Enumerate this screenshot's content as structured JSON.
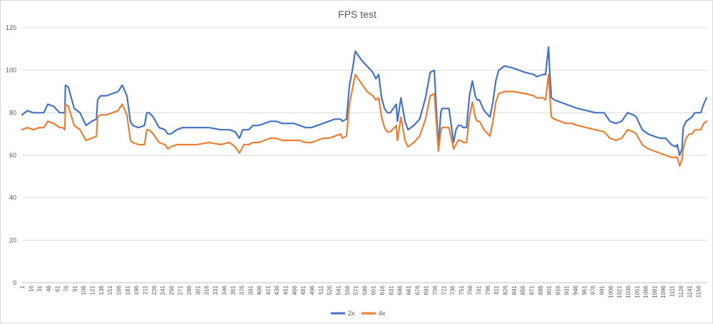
{
  "chart_data": {
    "type": "line",
    "title": "FPS test",
    "xlabel": "",
    "ylabel": "",
    "ylim": [
      0,
      120
    ],
    "yticks": [
      0,
      20,
      40,
      60,
      80,
      100,
      120
    ],
    "x_range": [
      1,
      1170
    ],
    "x_tick_start": 1,
    "x_tick_step": 15,
    "x_tick_labels": [
      "1",
      "16",
      "31",
      "46",
      "61",
      "76",
      "91",
      "106",
      "121",
      "136",
      "151",
      "166",
      "181",
      "196",
      "211",
      "226",
      "241",
      "256",
      "271",
      "286",
      "301",
      "316",
      "331",
      "346",
      "361",
      "376",
      "391",
      "406",
      "421",
      "436",
      "451",
      "466",
      "481",
      "496",
      "511",
      "526",
      "541",
      "556",
      "571",
      "586",
      "601",
      "616",
      "631",
      "646",
      "661",
      "676",
      "691",
      "706",
      "721",
      "736",
      "751",
      "766",
      "781",
      "796",
      "811",
      "826",
      "841",
      "856",
      "871",
      "886",
      "901",
      "916",
      "931",
      "946",
      "961",
      "976",
      "991",
      "1006",
      "1021",
      "1036",
      "1051",
      "1066",
      "1081",
      "1096",
      "1111",
      "1126",
      "1141",
      "1156"
    ],
    "grid": true,
    "legend_position": "bottom",
    "series": [
      {
        "name": "2x",
        "color": "#4472c4",
        "x": [
          1,
          10,
          20,
          30,
          38,
          45,
          55,
          65,
          70,
          74,
          75,
          80,
          90,
          100,
          110,
          120,
          128,
          130,
          135,
          145,
          155,
          165,
          172,
          180,
          186,
          190,
          200,
          210,
          214,
          218,
          225,
          235,
          245,
          250,
          255,
          265,
          275,
          285,
          300,
          320,
          340,
          355,
          365,
          372,
          378,
          380,
          388,
          395,
          405,
          415,
          425,
          435,
          445,
          455,
          465,
          475,
          485,
          495,
          505,
          515,
          525,
          535,
          545,
          548,
          555,
          560,
          565,
          570,
          580,
          590,
          600,
          605,
          610,
          615,
          620,
          625,
          630,
          640,
          642,
          648,
          655,
          660,
          670,
          680,
          690,
          698,
          705,
          712,
          716,
          718,
          722,
          730,
          738,
          742,
          746,
          750,
          755,
          760,
          765,
          770,
          775,
          778,
          782,
          790,
          800,
          805,
          810,
          815,
          825,
          840,
          860,
          875,
          880,
          890,
          895,
          900,
          902,
          905,
          910,
          920,
          930,
          940,
          950,
          965,
          980,
          995,
          1005,
          1015,
          1025,
          1030,
          1035,
          1045,
          1050,
          1060,
          1070,
          1080,
          1090,
          1100,
          1110,
          1118,
          1120,
          1124,
          1128,
          1130,
          1135,
          1140,
          1145,
          1150,
          1160,
          1165,
          1170
        ],
        "y": [
          79,
          81,
          80,
          80,
          80,
          84,
          83,
          80,
          80,
          80,
          93,
          92,
          82,
          80,
          74,
          76,
          77,
          86,
          88,
          88,
          89,
          90,
          93,
          88,
          76,
          74,
          73,
          74,
          80,
          80,
          78,
          73,
          72,
          70,
          70,
          72,
          73,
          73,
          73,
          73,
          72,
          72,
          71,
          68,
          72,
          72,
          72,
          74,
          74,
          75,
          76,
          76,
          75,
          75,
          75,
          74,
          73,
          73,
          74,
          75,
          76,
          77,
          77,
          76,
          77,
          93,
          100,
          109,
          105,
          102,
          99,
          96,
          98,
          87,
          82,
          80,
          80,
          84,
          76,
          87,
          76,
          72,
          74,
          77,
          87,
          99,
          100,
          64,
          80,
          82,
          82,
          82,
          66,
          72,
          74,
          74,
          73,
          73,
          88,
          95,
          88,
          86,
          86,
          81,
          78,
          85,
          95,
          100,
          102,
          101,
          99,
          98,
          97,
          98,
          98,
          111,
          100,
          87,
          86,
          85,
          84,
          83,
          82,
          81,
          80,
          80,
          76,
          75,
          76,
          78,
          80,
          79,
          78,
          72,
          70,
          69,
          68,
          68,
          65,
          64,
          65,
          60,
          63,
          73,
          76,
          77,
          78,
          80,
          80,
          84,
          87
        ]
      },
      {
        "name": "4x",
        "color": "#ed7d31",
        "x": [
          1,
          10,
          20,
          30,
          38,
          45,
          55,
          65,
          70,
          74,
          75,
          80,
          90,
          100,
          110,
          120,
          128,
          130,
          135,
          145,
          155,
          165,
          172,
          180,
          186,
          190,
          200,
          210,
          214,
          218,
          225,
          235,
          245,
          250,
          255,
          265,
          275,
          285,
          300,
          320,
          340,
          355,
          365,
          372,
          378,
          380,
          388,
          395,
          405,
          415,
          425,
          435,
          445,
          455,
          465,
          475,
          485,
          495,
          505,
          515,
          525,
          535,
          545,
          548,
          555,
          560,
          565,
          570,
          580,
          590,
          600,
          605,
          610,
          615,
          620,
          625,
          630,
          640,
          642,
          648,
          655,
          660,
          670,
          680,
          690,
          698,
          705,
          712,
          716,
          718,
          722,
          730,
          738,
          742,
          746,
          750,
          755,
          760,
          765,
          770,
          775,
          778,
          782,
          790,
          800,
          805,
          810,
          815,
          825,
          840,
          860,
          875,
          880,
          890,
          895,
          900,
          902,
          905,
          910,
          920,
          930,
          940,
          950,
          965,
          980,
          995,
          1005,
          1015,
          1025,
          1030,
          1035,
          1045,
          1050,
          1060,
          1070,
          1080,
          1090,
          1100,
          1110,
          1118,
          1120,
          1124,
          1128,
          1130,
          1135,
          1140,
          1145,
          1150,
          1160,
          1165,
          1170
        ],
        "y": [
          72,
          73,
          72,
          73,
          73,
          76,
          75,
          73,
          73,
          72,
          84,
          83,
          74,
          72,
          67,
          68,
          69,
          78,
          79,
          79,
          80,
          81,
          84,
          79,
          67,
          66,
          65,
          65,
          72,
          72,
          70,
          66,
          65,
          63,
          64,
          65,
          65,
          65,
          65,
          66,
          65,
          66,
          64,
          61,
          64,
          65,
          65,
          66,
          66,
          67,
          68,
          68,
          67,
          67,
          67,
          67,
          66,
          66,
          67,
          68,
          68,
          69,
          70,
          68,
          69,
          84,
          91,
          98,
          94,
          90,
          88,
          86,
          87,
          78,
          73,
          71,
          71,
          74,
          67,
          78,
          67,
          64,
          66,
          69,
          77,
          88,
          89,
          62,
          71,
          73,
          73,
          73,
          63,
          65,
          67,
          67,
          66,
          66,
          78,
          85,
          78,
          76,
          76,
          72,
          69,
          76,
          85,
          89,
          90,
          90,
          89,
          88,
          87,
          87,
          86,
          98,
          89,
          78,
          77,
          76,
          75,
          75,
          74,
          73,
          72,
          71,
          68,
          67,
          68,
          70,
          72,
          71,
          70,
          65,
          63,
          62,
          61,
          60,
          59,
          59,
          59,
          55,
          58,
          63,
          68,
          70,
          70,
          72,
          72,
          75,
          76
        ]
      }
    ]
  }
}
